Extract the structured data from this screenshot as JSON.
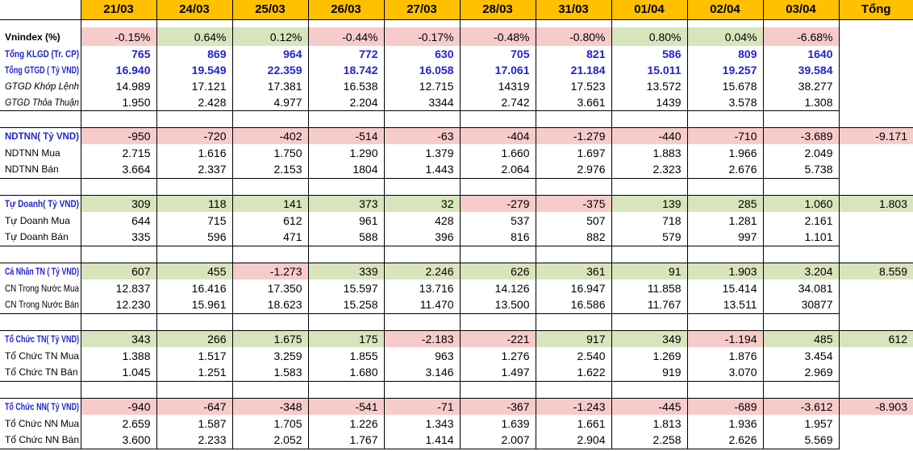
{
  "colors": {
    "header_bg": "#FFC000",
    "negative_bg": "#F8CBCB",
    "positive_bg": "#D8E4BC",
    "accent_blue_text": "#2323CD",
    "border": "#000000"
  },
  "header": {
    "corner": "",
    "dates": [
      "21/03",
      "24/03",
      "25/03",
      "26/03",
      "27/03",
      "28/03",
      "31/03",
      "01/04",
      "02/04",
      "03/04"
    ],
    "total_label": "Tổng"
  },
  "sections": [
    {
      "name": "market-overview",
      "rows": [
        {
          "label": "Vnindex (%)",
          "label_style": "bold",
          "value_style": "plain",
          "fill": "signed",
          "values": [
            "-0.15%",
            "0.64%",
            "0.12%",
            "-0.44%",
            "-0.17%",
            "-0.48%",
            "-0.80%",
            "0.80%",
            "0.04%",
            "-6.68%"
          ],
          "total": ""
        },
        {
          "label": "Tổng KLGD (Tr. CP)",
          "label_style": "bold-blue",
          "value_style": "bold-blue",
          "fill": "none",
          "values": [
            "765",
            "869",
            "964",
            "772",
            "630",
            "705",
            "821",
            "586",
            "809",
            "1640"
          ],
          "total": ""
        },
        {
          "label": "Tổng GTGD ( Tỷ VND)",
          "label_style": "bold-blue",
          "value_style": "bold-blue",
          "fill": "none",
          "values": [
            "16.940",
            "19.549",
            "22.359",
            "18.742",
            "16.058",
            "17.061",
            "21.184",
            "15.011",
            "19.257",
            "39.584"
          ],
          "total": ""
        },
        {
          "label": "GTGD Khớp Lệnh",
          "label_style": "italic",
          "value_style": "plain",
          "fill": "none",
          "values": [
            "14.989",
            "17.121",
            "17.381",
            "16.538",
            "12.715",
            "14319",
            "17.523",
            "13.572",
            "15.678",
            "38.277"
          ],
          "total": ""
        },
        {
          "label": "GTGD Thỏa Thuận",
          "label_style": "italic",
          "value_style": "plain",
          "fill": "none",
          "values": [
            "1.950",
            "2.428",
            "4.977",
            "2.204",
            "3344",
            "2.742",
            "3.661",
            "1439",
            "3.578",
            "1.308"
          ],
          "total": ""
        }
      ]
    },
    {
      "name": "foreign-investors",
      "rows": [
        {
          "label": "NDTNN( Tỷ VND)",
          "label_style": "bold-blue",
          "value_style": "plain",
          "fill": "signed",
          "values": [
            "-950",
            "-720",
            "-402",
            "-514",
            "-63",
            "-404",
            "-1.279",
            "-440",
            "-710",
            "-3.689"
          ],
          "total": "-9.171"
        },
        {
          "label": "NDTNN Mua",
          "label_style": "plain",
          "value_style": "plain",
          "fill": "none",
          "values": [
            "2.715",
            "1.616",
            "1.750",
            "1.290",
            "1.379",
            "1.660",
            "1.697",
            "1.883",
            "1.966",
            "2.049"
          ],
          "total": ""
        },
        {
          "label": "NDTNN Bán",
          "label_style": "plain",
          "value_style": "plain",
          "fill": "none",
          "values": [
            "3.664",
            "2.337",
            "2.153",
            "1804",
            "1.443",
            "2.064",
            "2.976",
            "2.323",
            "2.676",
            "5.738"
          ],
          "total": ""
        }
      ]
    },
    {
      "name": "proprietary-trading",
      "rows": [
        {
          "label": "Tự Doanh( Tỷ VND)",
          "label_style": "bold-blue",
          "value_style": "plain",
          "fill": "signed",
          "values": [
            "309",
            "118",
            "141",
            "373",
            "32",
            "-279",
            "-375",
            "139",
            "285",
            "1.060"
          ],
          "total": "1.803"
        },
        {
          "label": "Tự Doanh Mua",
          "label_style": "plain",
          "value_style": "plain",
          "fill": "none",
          "values": [
            "644",
            "715",
            "612",
            "961",
            "428",
            "537",
            "507",
            "718",
            "1.281",
            "2.161"
          ],
          "total": ""
        },
        {
          "label": "Tự Doanh Bán",
          "label_style": "plain",
          "value_style": "plain",
          "fill": "none",
          "values": [
            "335",
            "596",
            "471",
            "588",
            "396",
            "816",
            "882",
            "579",
            "997",
            "1.101"
          ],
          "total": ""
        }
      ]
    },
    {
      "name": "domestic-individuals",
      "rows": [
        {
          "label": "Cá Nhân TN ( Tỷ VND)",
          "label_style": "bold-blue",
          "value_style": "plain",
          "fill": "signed",
          "values": [
            "607",
            "455",
            "-1.273",
            "339",
            "2.246",
            "626",
            "361",
            "91",
            "1.903",
            "3.204"
          ],
          "total": "8.559"
        },
        {
          "label": "CN Trong Nước Mua",
          "label_style": "plain",
          "value_style": "plain",
          "fill": "none",
          "values": [
            "12.837",
            "16.416",
            "17.350",
            "15.597",
            "13.716",
            "14.126",
            "16.947",
            "11.858",
            "15.414",
            "34.081"
          ],
          "total": ""
        },
        {
          "label": "CN Trong Nước Bán",
          "label_style": "plain",
          "value_style": "plain",
          "fill": "none",
          "values": [
            "12.230",
            "15.961",
            "18.623",
            "15.258",
            "11.470",
            "13.500",
            "16.586",
            "11.767",
            "13.511",
            "30877"
          ],
          "total": ""
        }
      ]
    },
    {
      "name": "domestic-institutions",
      "rows": [
        {
          "label": "Tổ Chức TN( Tỷ VND)",
          "label_style": "bold-blue",
          "value_style": "plain",
          "fill": "signed",
          "values": [
            "343",
            "266",
            "1.675",
            "175",
            "-2.183",
            "-221",
            "917",
            "349",
            "-1.194",
            "485"
          ],
          "total": "612"
        },
        {
          "label": "Tổ Chức TN Mua",
          "label_style": "plain",
          "value_style": "plain",
          "fill": "none",
          "values": [
            "1.388",
            "1.517",
            "3.259",
            "1.855",
            "963",
            "1.276",
            "2.540",
            "1.269",
            "1.876",
            "3.454"
          ],
          "total": ""
        },
        {
          "label": "Tổ Chức TN Bán",
          "label_style": "plain",
          "value_style": "plain",
          "fill": "none",
          "values": [
            "1.045",
            "1.251",
            "1.583",
            "1.680",
            "3.146",
            "1.497",
            "1.622",
            "919",
            "3.070",
            "2.969"
          ],
          "total": ""
        }
      ]
    },
    {
      "name": "foreign-institutions",
      "rows": [
        {
          "label": "Tổ Chức NN( Tỷ VND)",
          "label_style": "bold-blue",
          "value_style": "plain",
          "fill": "signed",
          "values": [
            "-940",
            "-647",
            "-348",
            "-541",
            "-71",
            "-367",
            "-1.243",
            "-445",
            "-689",
            "-3.612"
          ],
          "total": "-8.903"
        },
        {
          "label": "Tổ Chức NN Mua",
          "label_style": "plain",
          "value_style": "plain",
          "fill": "none",
          "values": [
            "2.659",
            "1.587",
            "1.705",
            "1.226",
            "1.343",
            "1.639",
            "1.661",
            "1.813",
            "1.936",
            "1.957"
          ],
          "total": ""
        },
        {
          "label": "Tổ Chức NN Bán",
          "label_style": "plain",
          "value_style": "plain",
          "fill": "none",
          "values": [
            "3.600",
            "2.233",
            "2.052",
            "1.767",
            "1.414",
            "2.007",
            "2.904",
            "2.258",
            "2.626",
            "5.569"
          ],
          "total": ""
        }
      ]
    }
  ]
}
